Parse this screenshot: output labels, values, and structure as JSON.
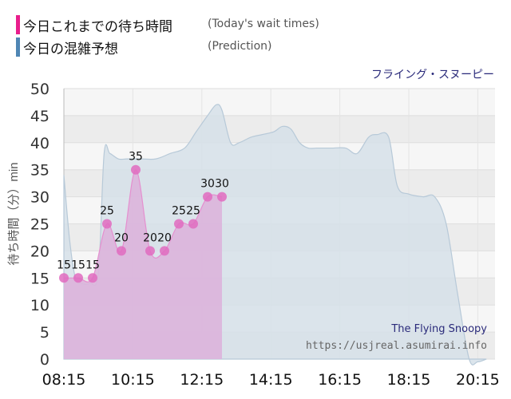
{
  "legend": {
    "items": [
      {
        "label": "今日これまでの待ち時間",
        "sublabel": "(Today's wait times)",
        "color": "#e91e8c"
      },
      {
        "label": "今日の混雑予想",
        "sublabel": "(Prediction)",
        "color": "#4f86b4"
      }
    ]
  },
  "attraction_name": "フライング・スヌーピー",
  "watermark": {
    "title": "The Flying Snoopy",
    "url": "https://usjreal.asumirai.info"
  },
  "colors": {
    "actual_fill": "#dcb4dc",
    "actual_line": "#e58fcf",
    "actual_point": "#e06bbf",
    "prediction_fill": "#d6e0e9",
    "prediction_line": "#b7c9d8",
    "accent_name": "#2a2a7a"
  },
  "chart_data": {
    "type": "area",
    "ylabel": "待ち時間（分）min",
    "ylim": [
      0,
      50
    ],
    "yticks": [
      0,
      5,
      10,
      15,
      20,
      25,
      30,
      35,
      40,
      45,
      50
    ],
    "xlim": [
      "08:15",
      "20:45"
    ],
    "xtick_labels": [
      "08:15",
      "10:15",
      "12:15",
      "14:15",
      "16:15",
      "18:15",
      "20:15"
    ],
    "grid": true,
    "series": [
      {
        "name": "今日これまでの待ち時間",
        "points": [
          {
            "x": "08:15",
            "y": 15
          },
          {
            "x": "08:40",
            "y": 15
          },
          {
            "x": "09:05",
            "y": 15
          },
          {
            "x": "09:30",
            "y": 25
          },
          {
            "x": "09:55",
            "y": 20
          },
          {
            "x": "10:20",
            "y": 35
          },
          {
            "x": "10:45",
            "y": 20
          },
          {
            "x": "11:10",
            "y": 20
          },
          {
            "x": "11:35",
            "y": 25
          },
          {
            "x": "12:00",
            "y": 25
          },
          {
            "x": "12:25",
            "y": 30
          },
          {
            "x": "12:50",
            "y": 30
          }
        ]
      },
      {
        "name": "今日の混雑予想",
        "points": [
          {
            "x": "08:15",
            "y": 34
          },
          {
            "x": "08:25",
            "y": 22
          },
          {
            "x": "08:35",
            "y": 15
          },
          {
            "x": "08:45",
            "y": 14
          },
          {
            "x": "09:00",
            "y": 14
          },
          {
            "x": "09:15",
            "y": 16
          },
          {
            "x": "09:25",
            "y": 38
          },
          {
            "x": "09:35",
            "y": 38
          },
          {
            "x": "09:50",
            "y": 37
          },
          {
            "x": "10:05",
            "y": 37
          },
          {
            "x": "10:30",
            "y": 37
          },
          {
            "x": "10:55",
            "y": 37
          },
          {
            "x": "11:20",
            "y": 38
          },
          {
            "x": "11:45",
            "y": 39
          },
          {
            "x": "12:05",
            "y": 42
          },
          {
            "x": "12:25",
            "y": 45
          },
          {
            "x": "12:40",
            "y": 47
          },
          {
            "x": "12:50",
            "y": 46
          },
          {
            "x": "13:05",
            "y": 40
          },
          {
            "x": "13:20",
            "y": 40
          },
          {
            "x": "13:40",
            "y": 41
          },
          {
            "x": "14:00",
            "y": 41.5
          },
          {
            "x": "14:20",
            "y": 42
          },
          {
            "x": "14:35",
            "y": 43
          },
          {
            "x": "14:50",
            "y": 42.5
          },
          {
            "x": "15:05",
            "y": 40
          },
          {
            "x": "15:20",
            "y": 39
          },
          {
            "x": "15:35",
            "y": 39
          },
          {
            "x": "16:00",
            "y": 39
          },
          {
            "x": "16:25",
            "y": 39
          },
          {
            "x": "16:45",
            "y": 38
          },
          {
            "x": "17:05",
            "y": 41
          },
          {
            "x": "17:20",
            "y": 41.5
          },
          {
            "x": "17:40",
            "y": 41
          },
          {
            "x": "17:55",
            "y": 32
          },
          {
            "x": "18:15",
            "y": 30.5
          },
          {
            "x": "18:40",
            "y": 30
          },
          {
            "x": "19:00",
            "y": 30
          },
          {
            "x": "19:20",
            "y": 25
          },
          {
            "x": "19:40",
            "y": 12
          },
          {
            "x": "20:00",
            "y": 0
          },
          {
            "x": "20:15",
            "y": -0.5
          },
          {
            "x": "20:30",
            "y": 0
          }
        ]
      }
    ]
  }
}
